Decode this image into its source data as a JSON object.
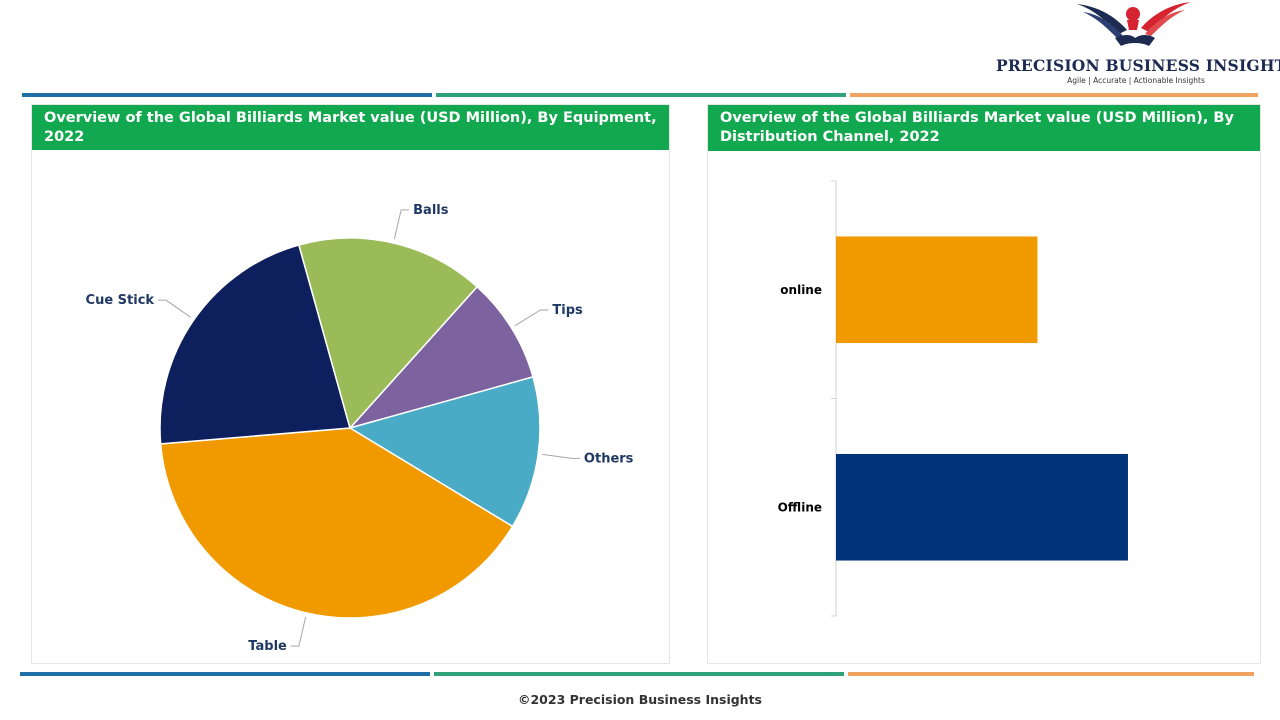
{
  "brand": {
    "name": "PRECISION BUSINESS INSIGHTS",
    "tagline": "Agile | Accurate | Actionable Insights",
    "colors": {
      "navy": "#1d2a52",
      "red": "#d5232f"
    }
  },
  "stripe_colors": [
    "#1f6fa6",
    "#2fa27a",
    "#f0a35e"
  ],
  "charts": {
    "equipment": {
      "title": "Overview of the Global Billiards Market value (USD Million), By Equipment, 2022"
    },
    "distribution": {
      "title": "Overview of the Global Billiards Market value (USD Million), By Distribution Channel, 2022"
    }
  },
  "chart_data": [
    {
      "type": "pie",
      "title": "Overview of the Global Billiards Market value (USD Million), By Equipment, 2022",
      "start_angle_deg": 48,
      "slices": [
        {
          "label": "Tips",
          "value": 9,
          "color": "#7d62a0"
        },
        {
          "label": "Others",
          "value": 13,
          "color": "#4aabc6"
        },
        {
          "label": "Table",
          "value": 40,
          "color": "#f09a00"
        },
        {
          "label": "Cue Stick",
          "value": 22,
          "color": "#0d1f5c"
        },
        {
          "label": "Balls",
          "value": 16,
          "color": "#9bbb59"
        }
      ],
      "legend": "none"
    },
    {
      "type": "bar",
      "orientation": "horizontal",
      "title": "Overview of the Global Billiards Market value (USD Million), By Distribution Channel, 2022",
      "categories": [
        "online",
        "Offline"
      ],
      "values": [
        69,
        100
      ],
      "colors": [
        "#f09a00",
        "#003478"
      ],
      "xlim": [
        0,
        137
      ],
      "value_axis_shown": false
    }
  ],
  "footer": "©2023 Precision Business Insights"
}
